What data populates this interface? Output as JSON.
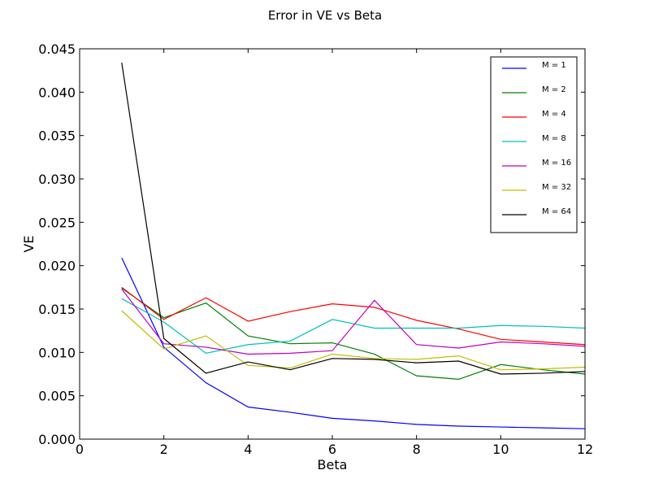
{
  "chart_data": {
    "type": "line",
    "title": "Error in VE vs Beta",
    "xlabel": "Beta",
    "ylabel": "VE",
    "xlim": [
      0,
      12
    ],
    "ylim": [
      0,
      0.045
    ],
    "xticks": [
      0,
      2,
      4,
      6,
      8,
      10,
      12
    ],
    "yticks": [
      0.0,
      0.005,
      0.01,
      0.015,
      0.02,
      0.025,
      0.03,
      0.035,
      0.04,
      0.045
    ],
    "ytick_labels": [
      "0.000",
      "0.005",
      "0.010",
      "0.015",
      "0.020",
      "0.025",
      "0.030",
      "0.035",
      "0.040",
      "0.045"
    ],
    "legend_position": "top-right",
    "grid": false,
    "x": [
      1,
      2,
      3,
      4,
      5,
      6,
      7,
      8,
      9,
      10,
      11,
      12
    ],
    "series": [
      {
        "name": "M = 1",
        "color": "#0000ff",
        "values": [
          0.0209,
          0.0106,
          0.0065,
          0.0037,
          0.0031,
          0.0024,
          0.0021,
          0.0017,
          0.0015,
          0.0014,
          0.0013,
          0.0012
        ]
      },
      {
        "name": "M = 2",
        "color": "#008000",
        "values": [
          0.0174,
          0.014,
          0.0157,
          0.0119,
          0.011,
          0.0111,
          0.0098,
          0.0073,
          0.0069,
          0.0086,
          0.008,
          0.0075
        ]
      },
      {
        "name": "M = 4",
        "color": "#ff0000",
        "values": [
          0.0175,
          0.0138,
          0.0163,
          0.0136,
          0.0147,
          0.0156,
          0.0152,
          0.0137,
          0.0127,
          0.0115,
          0.0112,
          0.0109
        ]
      },
      {
        "name": "M = 8",
        "color": "#00bfbf",
        "values": [
          0.0162,
          0.0135,
          0.0099,
          0.0109,
          0.0113,
          0.0138,
          0.0128,
          0.0128,
          0.0128,
          0.0131,
          0.013,
          0.0128
        ]
      },
      {
        "name": "M = 16",
        "color": "#bf00bf",
        "values": [
          0.0173,
          0.011,
          0.0106,
          0.0098,
          0.0099,
          0.0102,
          0.016,
          0.0109,
          0.0105,
          0.0112,
          0.011,
          0.0107
        ]
      },
      {
        "name": "M = 32",
        "color": "#bfbf00",
        "values": [
          0.0148,
          0.0104,
          0.0119,
          0.0085,
          0.0082,
          0.0098,
          0.0093,
          0.0092,
          0.0096,
          0.008,
          0.0081,
          0.0083
        ]
      },
      {
        "name": "M = 64",
        "color": "#000000",
        "values": [
          0.0434,
          0.0116,
          0.0076,
          0.0089,
          0.008,
          0.0093,
          0.0092,
          0.0088,
          0.009,
          0.0075,
          0.0076,
          0.0078
        ]
      }
    ]
  }
}
